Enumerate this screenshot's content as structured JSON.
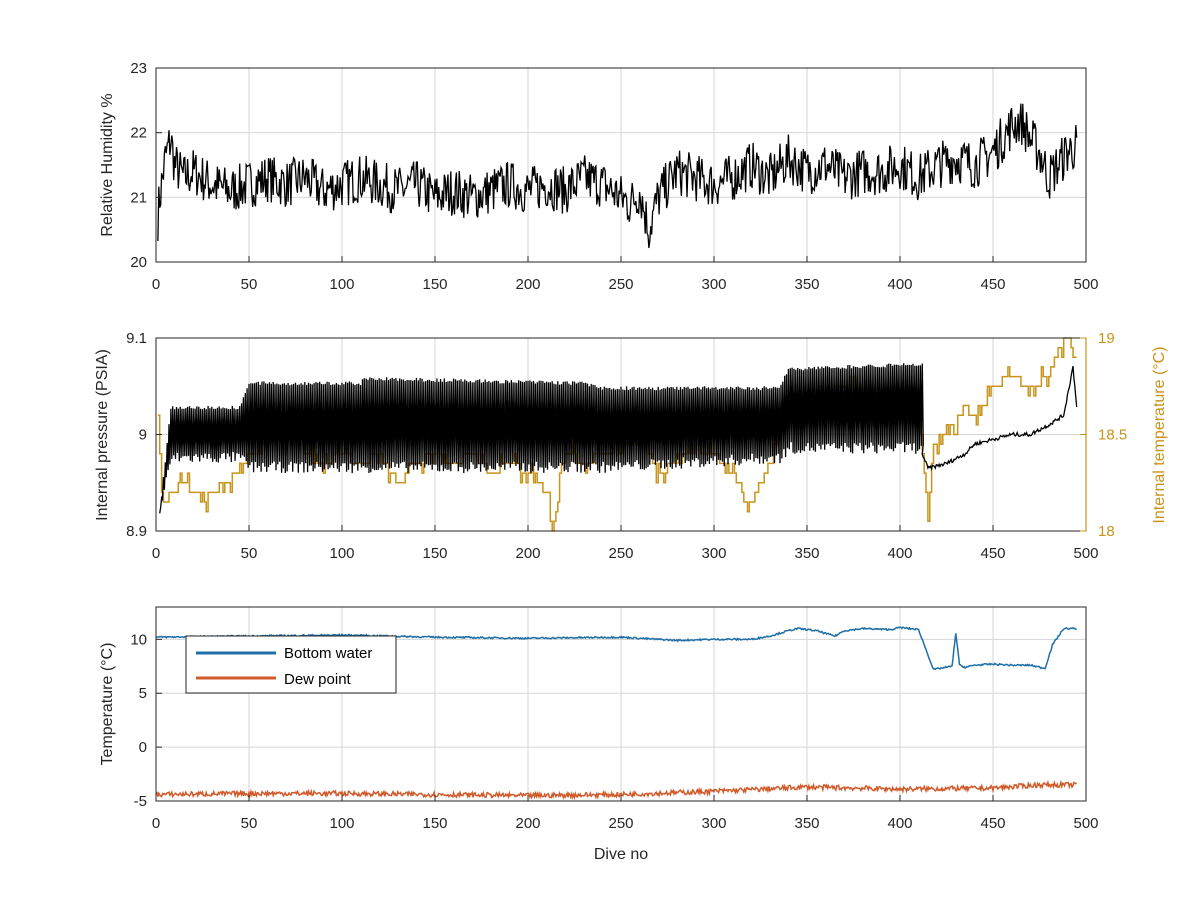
{
  "colors": {
    "axis": "#262626",
    "series_black": "#000000",
    "internal_temperature": "#c8941c",
    "bottom_water": "#1f6fa8",
    "dew_point": "#d15b2b",
    "grid": "#d6d6d6"
  },
  "chart_data": [
    {
      "type": "line",
      "xlabel": "",
      "ylabel": "Relative Humidity %",
      "xlim": [
        0,
        500
      ],
      "ylim": [
        20,
        23
      ],
      "xticks": [
        0,
        50,
        100,
        150,
        200,
        250,
        300,
        350,
        400,
        450,
        500
      ],
      "yticks": [
        20,
        21,
        22,
        23
      ],
      "grid": true,
      "series": [
        {
          "color": "#000000",
          "x": [
            0,
            2,
            5,
            8,
            10,
            15,
            20,
            30,
            40,
            50,
            60,
            70,
            80,
            90,
            100,
            110,
            120,
            130,
            140,
            150,
            160,
            170,
            180,
            190,
            200,
            210,
            220,
            230,
            240,
            250,
            255,
            260,
            265,
            270,
            280,
            290,
            300,
            310,
            320,
            330,
            340,
            350,
            360,
            370,
            380,
            390,
            400,
            410,
            420,
            430,
            440,
            450,
            460,
            465,
            470,
            475,
            480,
            485,
            490,
            495
          ],
          "values": [
            20.4,
            21.0,
            21.6,
            21.9,
            21.5,
            21.3,
            21.4,
            21.2,
            21.1,
            21.2,
            21.3,
            21.2,
            21.3,
            21.1,
            21.2,
            21.3,
            21.2,
            21.1,
            21.2,
            21.0,
            21.1,
            21.0,
            21.1,
            21.2,
            21.1,
            21.2,
            21.1,
            21.3,
            21.2,
            21.0,
            20.9,
            21.1,
            20.5,
            21.0,
            21.4,
            21.3,
            21.2,
            21.3,
            21.5,
            21.3,
            21.6,
            21.4,
            21.5,
            21.3,
            21.4,
            21.4,
            21.5,
            21.3,
            21.5,
            21.6,
            21.5,
            21.7,
            22.1,
            22.2,
            21.9,
            21.7,
            21.3,
            21.5,
            21.7,
            21.8
          ]
        }
      ]
    },
    {
      "type": "line",
      "xlabel": "",
      "ylabel": "Internal pressure (PSIA)",
      "y2label": "Internal temperature (°C)",
      "xlim": [
        0,
        500
      ],
      "ylim": [
        8.9,
        9.1
      ],
      "y2lim": [
        18,
        19
      ],
      "xticks": [
        0,
        50,
        100,
        150,
        200,
        250,
        300,
        350,
        400,
        450,
        500
      ],
      "yticks": [
        8.9,
        9.0,
        9.1
      ],
      "ytick_labels": [
        "8.9",
        "9",
        "9.1"
      ],
      "y2ticks": [
        18,
        18.5,
        19
      ],
      "y2tick_labels": [
        "18",
        "18.5",
        "19"
      ],
      "grid": true,
      "pressure_upper": {
        "x": [
          2,
          8,
          45,
          50,
          110,
          112,
          230,
          240,
          335,
          340,
          410,
          415
        ],
        "values": [
          8.92,
          9.03,
          9.03,
          9.055,
          9.055,
          9.06,
          9.055,
          9.05,
          9.05,
          9.07,
          9.075,
          9.075
        ]
      },
      "pressure_lower": {
        "x": [
          2,
          8,
          45,
          50,
          110,
          112,
          230,
          240,
          335,
          340,
          410,
          415
        ],
        "values": [
          8.92,
          8.97,
          8.97,
          8.96,
          8.96,
          8.96,
          8.96,
          8.96,
          8.97,
          8.98,
          8.98,
          8.98
        ]
      },
      "pressure_tail": {
        "x": [
          412,
          415,
          425,
          435,
          440,
          450,
          460,
          470,
          480,
          488,
          490,
          493,
          495
        ],
        "values": [
          8.98,
          8.965,
          8.97,
          8.98,
          8.99,
          8.995,
          9.0,
          9.0,
          9.01,
          9.02,
          9.04,
          9.07,
          9.03
        ]
      },
      "internal_temperature": {
        "color": "#c8941c",
        "x": [
          1,
          3,
          5,
          8,
          15,
          25,
          35,
          45,
          50,
          60,
          70,
          80,
          90,
          100,
          110,
          120,
          130,
          140,
          150,
          160,
          170,
          180,
          190,
          200,
          210,
          213,
          220,
          230,
          240,
          250,
          260,
          270,
          280,
          290,
          300,
          310,
          318,
          325,
          335,
          340,
          350,
          360,
          370,
          380,
          390,
          400,
          405,
          410,
          415,
          418,
          425,
          435,
          440,
          450,
          460,
          470,
          480,
          485,
          490,
          495
        ],
        "values": [
          18.6,
          18.2,
          18.15,
          18.2,
          18.25,
          18.15,
          18.25,
          18.3,
          18.4,
          18.45,
          18.6,
          18.4,
          18.35,
          18.4,
          18.35,
          18.4,
          18.25,
          18.35,
          18.4,
          18.35,
          18.4,
          18.3,
          18.35,
          18.3,
          18.2,
          18.0,
          18.4,
          18.35,
          18.4,
          18.45,
          18.5,
          18.3,
          18.35,
          18.45,
          18.4,
          18.3,
          18.1,
          18.25,
          18.5,
          18.7,
          18.65,
          18.7,
          18.75,
          18.7,
          18.7,
          18.75,
          18.7,
          18.6,
          18.1,
          18.45,
          18.5,
          18.65,
          18.55,
          18.75,
          18.8,
          18.75,
          18.8,
          18.95,
          19.0,
          18.9
        ]
      }
    },
    {
      "type": "line",
      "xlabel": "Dive no",
      "ylabel": "Temperature (°C)",
      "xlim": [
        0,
        500
      ],
      "ylim": [
        -5,
        13
      ],
      "xticks": [
        0,
        50,
        100,
        150,
        200,
        250,
        300,
        350,
        400,
        450,
        500
      ],
      "yticks": [
        -5,
        0,
        5,
        10
      ],
      "grid": true,
      "legend_location": "top-left",
      "series": [
        {
          "name": "Bottom water",
          "color": "#1f6fa8",
          "x": [
            0,
            50,
            100,
            150,
            200,
            250,
            280,
            300,
            320,
            330,
            340,
            345,
            355,
            365,
            370,
            380,
            395,
            400,
            410,
            413,
            418,
            428,
            430,
            432,
            435,
            440,
            450,
            460,
            470,
            478,
            482,
            488,
            495
          ],
          "values": [
            10.2,
            10.3,
            10.4,
            10.2,
            10.1,
            10.2,
            9.9,
            10.0,
            10.0,
            10.3,
            10.8,
            11.0,
            10.8,
            10.3,
            10.8,
            11.0,
            10.9,
            11.1,
            10.9,
            9.5,
            7.2,
            7.5,
            10.6,
            7.6,
            7.4,
            7.6,
            7.7,
            7.6,
            7.6,
            7.3,
            9.5,
            11.0,
            11.0
          ]
        },
        {
          "name": "Dew point",
          "color": "#d15b2b",
          "x": [
            0,
            50,
            100,
            150,
            200,
            250,
            300,
            350,
            400,
            450,
            475,
            495
          ],
          "values": [
            -4.4,
            -4.3,
            -4.3,
            -4.4,
            -4.5,
            -4.4,
            -4.1,
            -3.7,
            -3.9,
            -3.8,
            -3.5,
            -3.5
          ]
        }
      ]
    }
  ]
}
